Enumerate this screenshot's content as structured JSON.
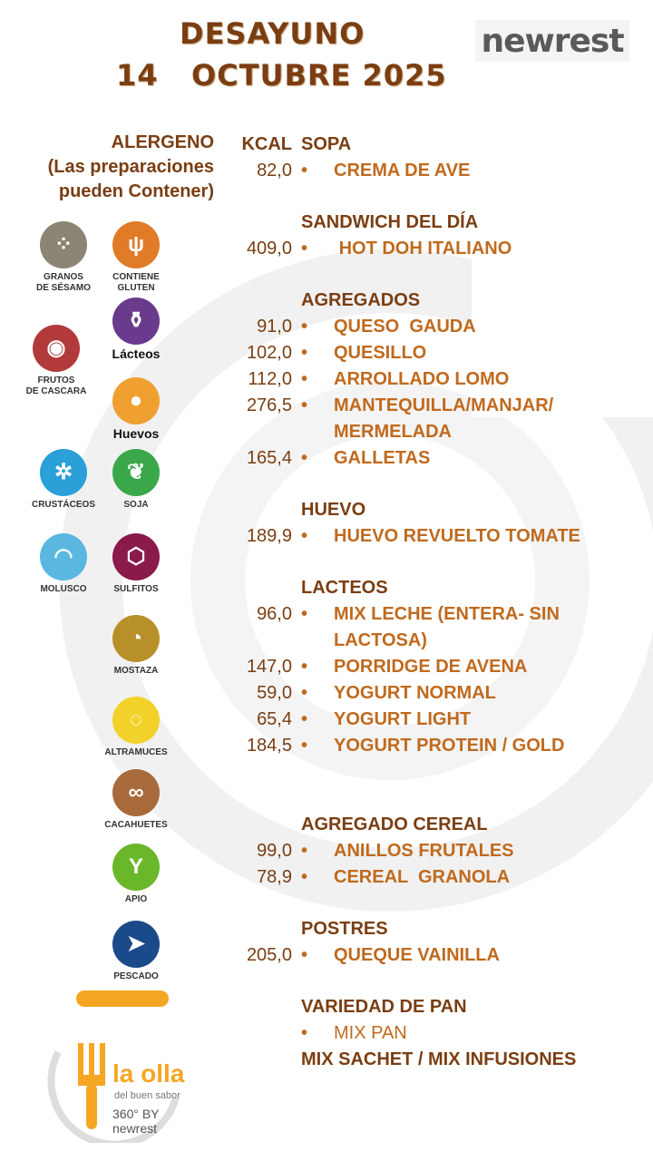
{
  "header": {
    "title_line1": "DESAYUNO",
    "title_line2": "14   OCTUBRE 2025",
    "brand": "newrest"
  },
  "allergen_panel": {
    "heading_line1": "ALERGENO",
    "heading_line2": "(Las preparaciones",
    "heading_line3": "pueden Contener)",
    "items": [
      {
        "label_1": "GRANOS",
        "label_2": "DE SÉSAMO",
        "color": "#8a8574",
        "icon": "sesame-icon"
      },
      {
        "label_1": "CONTIENE",
        "label_2": "GLUTEN",
        "color": "#e07b28",
        "icon": "wheat-icon"
      },
      {
        "label_1": "Lácteos",
        "label_2": "",
        "color": "#6a3a8c",
        "icon": "milk-jug-icon"
      },
      {
        "label_1": "FRUTOS",
        "label_2": "DE CASCARA",
        "color": "#b23a3a",
        "icon": "nut-icon"
      },
      {
        "label_1": "Huevos",
        "label_2": "",
        "color": "#f0a030",
        "icon": "egg-icon"
      },
      {
        "label_1": "CRUSTÁCEOS",
        "label_2": "",
        "color": "#2a9fd8",
        "icon": "crab-icon"
      },
      {
        "label_1": "SOJA",
        "label_2": "",
        "color": "#3aa84a",
        "icon": "soy-icon"
      },
      {
        "label_1": "MOLUSCO",
        "label_2": "",
        "color": "#5ab8e0",
        "icon": "shell-icon"
      },
      {
        "label_1": "SULFITOS",
        "label_2": "",
        "color": "#8a1a4a",
        "icon": "molecule-icon"
      },
      {
        "label_1": "MOSTAZA",
        "label_2": "",
        "color": "#b8902a",
        "icon": "mustard-icon"
      },
      {
        "label_1": "ALTRAMUCES",
        "label_2": "",
        "color": "#f2d22a",
        "icon": "lupin-icon"
      },
      {
        "label_1": "CACAHUETES",
        "label_2": "",
        "color": "#a86a3a",
        "icon": "peanut-icon"
      },
      {
        "label_1": "APIO",
        "label_2": "",
        "color": "#6ab82a",
        "icon": "celery-icon"
      },
      {
        "label_1": "PESCADO",
        "label_2": "",
        "color": "#1a4a8a",
        "icon": "fish-icon"
      }
    ],
    "bottom_logo_line1": "la olla",
    "bottom_logo_line2": "del buen sabor",
    "bottom_logo_line3": "360° BY newrest"
  },
  "menu": {
    "kcal_header": "KCAL",
    "sections": [
      {
        "title": "SOPA",
        "items": [
          {
            "kcal": "82,0",
            "name": "CREMA DE AVE"
          }
        ]
      },
      {
        "title": "SANDWICH DEL DÍA",
        "items": [
          {
            "kcal": "409,0",
            "name": " HOT DOH ITALIANO"
          }
        ]
      },
      {
        "title": "AGREGADOS",
        "items": [
          {
            "kcal": "91,0",
            "name": "QUESO  GAUDA"
          },
          {
            "kcal": "102,0",
            "name": "QUESILLO"
          },
          {
            "kcal": "112,0",
            "name": "ARROLLADO LOMO"
          },
          {
            "kcal": "276,5",
            "name": "MANTEQUILLA/MANJAR/ MERMELADA"
          },
          {
            "kcal": "165,4",
            "name": "GALLETAS"
          }
        ]
      },
      {
        "title": "HUEVO",
        "items": [
          {
            "kcal": "189,9",
            "name": "HUEVO REVUELTO TOMATE"
          }
        ]
      },
      {
        "title": "LACTEOS",
        "items": [
          {
            "kcal": "96,0",
            "name": "MIX LECHE (ENTERA- SIN LACTOSA)"
          },
          {
            "kcal": "147,0",
            "name": "PORRIDGE DE AVENA"
          },
          {
            "kcal": "59,0",
            "name": "YOGURT NORMAL"
          },
          {
            "kcal": "65,4",
            "name": "YOGURT LIGHT"
          },
          {
            "kcal": "184,5",
            "name": "YOGURT PROTEIN / GOLD"
          }
        ]
      },
      {
        "title": "AGREGADO CEREAL",
        "items": [
          {
            "kcal": "99,0",
            "name": "ANILLOS FRUTALES"
          },
          {
            "kcal": "78,9",
            "name": "CEREAL  GRANOLA"
          }
        ]
      },
      {
        "title": "POSTRES",
        "items": [
          {
            "kcal": "205,0",
            "name": "QUEQUE VAINILLA"
          }
        ]
      },
      {
        "title": "VARIEDAD DE PAN",
        "items": [
          {
            "kcal": "",
            "name": "MIX PAN"
          }
        ]
      }
    ],
    "footer_line": "MIX SACHET / MIX INFUSIONES"
  }
}
